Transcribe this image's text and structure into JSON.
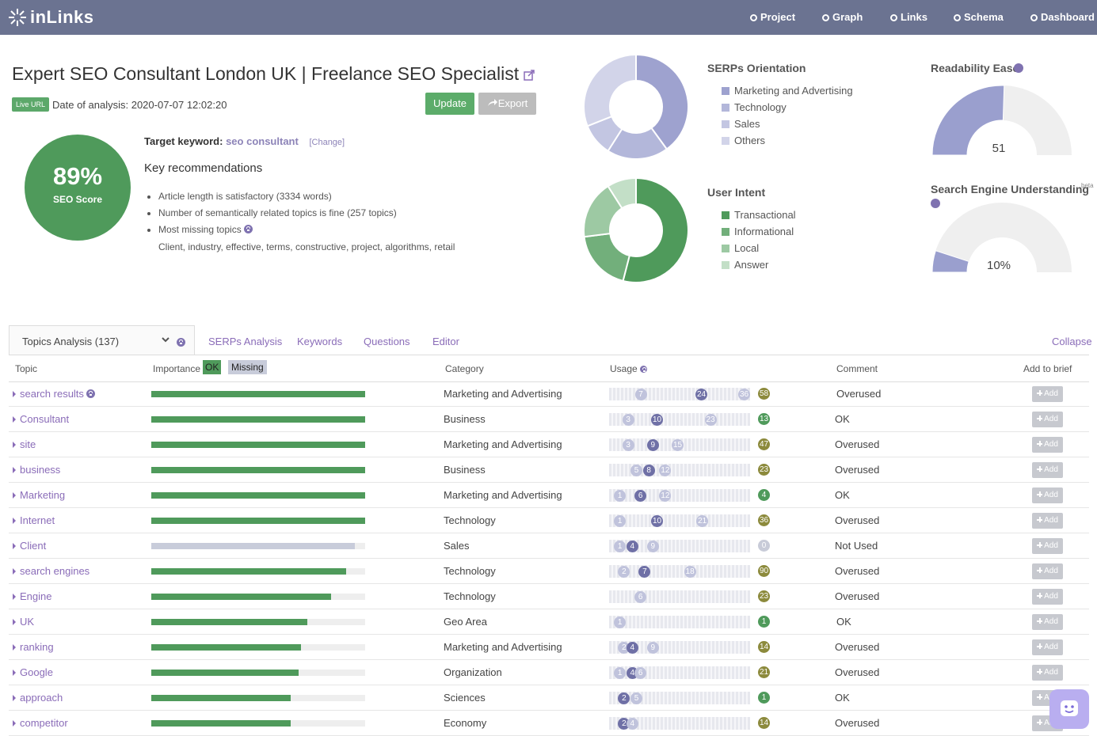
{
  "nav": {
    "brand": "inLinks",
    "items": [
      "Project",
      "Graph",
      "Links",
      "Schema",
      "Dashboard"
    ]
  },
  "header": {
    "title": "Expert SEO Consultant London UK | Freelance SEO Specialist",
    "live_url": "Live URL",
    "date": "Date of analysis: 2020-07-07 12:02:20",
    "update": "Update",
    "export": "Export"
  },
  "score": {
    "value": "89%",
    "label": "SEO Score"
  },
  "keyword": {
    "label": "Target keyword:",
    "value": "seo consultant",
    "change": "[Change]"
  },
  "recommendations": {
    "title": "Key recommendations",
    "items": [
      "Article length is satisfactory (3334 words)",
      "Number of semantically related topics is fine (257 topics)",
      "Most missing topics"
    ],
    "missing": "Client, industry, effective, terms, constructive, project, algorithms, retail"
  },
  "serps": {
    "title": "SERPs Orientation",
    "segments": [
      {
        "name": "Marketing and Advertising",
        "color": "#9ea2cf",
        "value": 40
      },
      {
        "name": "Technology",
        "color": "#b3b7da",
        "value": 19
      },
      {
        "name": "Sales",
        "color": "#c3c6e2",
        "value": 10
      },
      {
        "name": "Others",
        "color": "#d2d4e9",
        "value": 31
      }
    ]
  },
  "intent": {
    "title": "User Intent",
    "segments": [
      {
        "name": "Transactional",
        "color": "#4f9a5b",
        "value": 54
      },
      {
        "name": "Informational",
        "color": "#72af7b",
        "value": 19
      },
      {
        "name": "Local",
        "color": "#9dc9a3",
        "value": 18
      },
      {
        "name": "Answer",
        "color": "#c3dfc7",
        "value": 9
      }
    ]
  },
  "readability": {
    "title": "Readability Ease",
    "value": 51,
    "range": [
      0,
      100
    ]
  },
  "understanding": {
    "title": "Search Engine Understanding",
    "badge": "beta",
    "value": 10,
    "label": "10%",
    "range": [
      0,
      100
    ]
  },
  "tabs": {
    "active": "Topics Analysis (137)",
    "items": [
      "SERPs Analysis",
      "Keywords",
      "Questions",
      "Editor"
    ],
    "collapse": "Collapse"
  },
  "table": {
    "headers": {
      "topic": "Topic",
      "importance": "Importance",
      "ok": "OK",
      "missing": "Missing",
      "category": "Category",
      "usage": "Usage",
      "comment": "Comment",
      "brief": "Add to brief"
    },
    "add": "Add",
    "importance_range": [
      0,
      100
    ],
    "rows": [
      {
        "topic": "search results",
        "importance": 100,
        "status": "ok",
        "category": "Marketing and Advertising",
        "usage": [
          {
            "n": 7,
            "dark": false
          },
          {
            "n": 24,
            "dark": true
          },
          {
            "n": 36,
            "dark": false
          }
        ],
        "count": 58,
        "count_color": "#8c8a3c",
        "comment": "Overused"
      },
      {
        "topic": "Consultant",
        "importance": 100,
        "status": "ok",
        "category": "Business",
        "usage": [
          {
            "n": 3,
            "dark": false
          },
          {
            "n": 10,
            "dark": true
          },
          {
            "n": 23,
            "dark": false
          }
        ],
        "count": 13,
        "count_color": "#4f9a5b",
        "comment": "OK"
      },
      {
        "topic": "site",
        "importance": 100,
        "status": "ok",
        "category": "Marketing and Advertising",
        "usage": [
          {
            "n": 3,
            "dark": false
          },
          {
            "n": 9,
            "dark": true
          },
          {
            "n": 15,
            "dark": false
          }
        ],
        "count": 47,
        "count_color": "#8c8a3c",
        "comment": "Overused"
      },
      {
        "topic": "business",
        "importance": 100,
        "status": "ok",
        "category": "Business",
        "usage": [
          {
            "n": 5,
            "dark": false
          },
          {
            "n": 8,
            "dark": true
          },
          {
            "n": 12,
            "dark": false
          }
        ],
        "count": 23,
        "count_color": "#8c8a3c",
        "comment": "Overused"
      },
      {
        "topic": "Marketing",
        "importance": 100,
        "status": "ok",
        "category": "Marketing and Advertising",
        "usage": [
          {
            "n": 1,
            "dark": false
          },
          {
            "n": 6,
            "dark": true
          },
          {
            "n": 12,
            "dark": false
          }
        ],
        "count": 4,
        "count_color": "#4f9a5b",
        "comment": "OK"
      },
      {
        "topic": "Internet",
        "importance": 100,
        "status": "ok",
        "category": "Technology",
        "usage": [
          {
            "n": 1,
            "dark": false
          },
          {
            "n": 10,
            "dark": true
          },
          {
            "n": 21,
            "dark": false
          }
        ],
        "count": 36,
        "count_color": "#8c8a3c",
        "comment": "Overused"
      },
      {
        "topic": "Client",
        "importance": 95,
        "status": "missing",
        "category": "Sales",
        "usage": [
          {
            "n": 1,
            "dark": false
          },
          {
            "n": 4,
            "dark": true
          },
          {
            "n": 9,
            "dark": false
          }
        ],
        "count": 0,
        "count_color": "#c8cbd8",
        "comment": "Not Used"
      },
      {
        "topic": "search engines",
        "importance": 91,
        "status": "ok",
        "category": "Technology",
        "usage": [
          {
            "n": 2,
            "dark": false
          },
          {
            "n": 7,
            "dark": true
          },
          {
            "n": 18,
            "dark": false
          }
        ],
        "count": 90,
        "count_color": "#8c8a3c",
        "comment": "Overused"
      },
      {
        "topic": "Engine",
        "importance": 84,
        "status": "ok",
        "category": "Technology",
        "usage": [
          {
            "n": 6,
            "dark": false
          }
        ],
        "count": 23,
        "count_color": "#8c8a3c",
        "comment": "Overused"
      },
      {
        "topic": "UK",
        "importance": 73,
        "status": "ok",
        "category": "Geo Area",
        "usage": [
          {
            "n": 1,
            "dark": false
          }
        ],
        "count": 1,
        "count_color": "#4f9a5b",
        "comment": "OK"
      },
      {
        "topic": "ranking",
        "importance": 70,
        "status": "ok",
        "category": "Marketing and Advertising",
        "usage": [
          {
            "n": 2,
            "dark": false
          },
          {
            "n": 4,
            "dark": true
          },
          {
            "n": 9,
            "dark": false
          }
        ],
        "count": 14,
        "count_color": "#8c8a3c",
        "comment": "Overused"
      },
      {
        "topic": "Google",
        "importance": 69,
        "status": "ok",
        "category": "Organization",
        "usage": [
          {
            "n": 1,
            "dark": false
          },
          {
            "n": 4,
            "dark": true
          },
          {
            "n": 6,
            "dark": false
          }
        ],
        "count": 21,
        "count_color": "#8c8a3c",
        "comment": "Overused"
      },
      {
        "topic": "approach",
        "importance": 65,
        "status": "ok",
        "category": "Sciences",
        "usage": [
          {
            "n": 2,
            "dark": true
          },
          {
            "n": 5,
            "dark": false
          }
        ],
        "count": 1,
        "count_color": "#4f9a5b",
        "comment": "OK"
      },
      {
        "topic": "competitor",
        "importance": 65,
        "status": "ok",
        "category": "Economy",
        "usage": [
          {
            "n": 2,
            "dark": true
          },
          {
            "n": 4,
            "dark": false
          }
        ],
        "count": 14,
        "count_color": "#8c8a3c",
        "comment": "Overused"
      }
    ]
  }
}
